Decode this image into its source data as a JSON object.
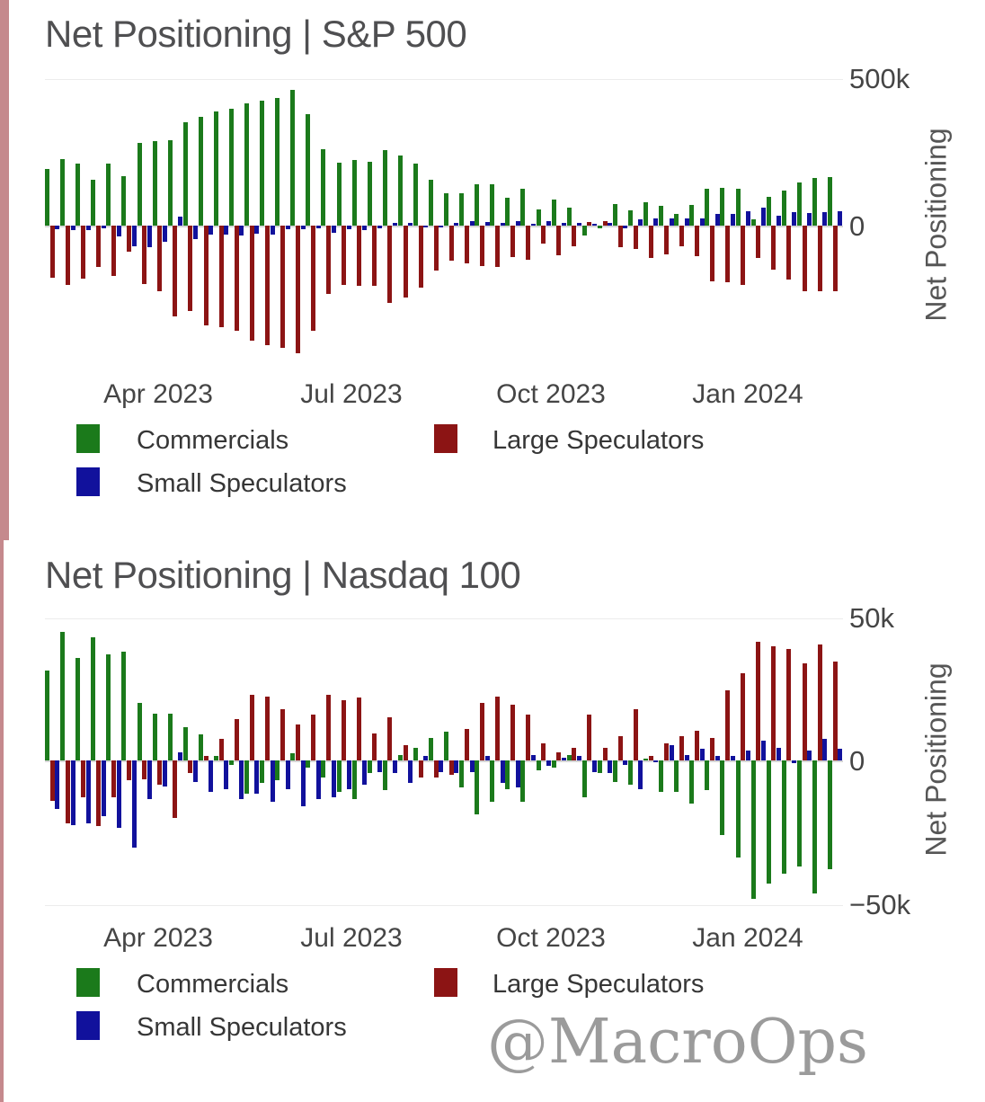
{
  "watermark": "@MacroOps",
  "accent": {
    "left_bar_color": "#c5898d"
  },
  "series": [
    {
      "name": "Commercials",
      "color": "#1b7a1b"
    },
    {
      "name": "Large Speculators",
      "color": "#8c1414"
    },
    {
      "name": "Small Speculators",
      "color": "#11119c"
    }
  ],
  "charts": [
    {
      "title": "Net Positioning | S&P 500",
      "y_axis_title": "Net Positioning",
      "y_tick_labels": [
        "500k",
        "0"
      ],
      "x_tick_labels": [
        "Apr 2023",
        "Jul 2023",
        "Oct 2023",
        "Jan 2024"
      ]
    },
    {
      "title": "Net Positioning | Nasdaq 100",
      "y_axis_title": "Net Positioning",
      "y_tick_labels": [
        "50k",
        "0",
        "−50k"
      ],
      "x_tick_labels": [
        "Apr 2023",
        "Jul 2023",
        "Oct 2023",
        "Jan 2024"
      ]
    }
  ],
  "chart_data": [
    {
      "type": "bar",
      "title": "Net Positioning | S&P 500",
      "ylabel": "Net Positioning",
      "unit": "thousands of contracts",
      "ylim": [
        -500,
        500
      ],
      "y_ticks_shown": [
        500,
        0
      ],
      "x_ticks": [
        "Apr 2023",
        "Jul 2023",
        "Oct 2023",
        "Jan 2024"
      ],
      "frequency": "weekly",
      "legend_position": "bottom-left",
      "grid": "horizontal-light",
      "series": [
        {
          "name": "Commercials",
          "values": [
            193,
            227,
            211,
            155,
            212,
            169,
            281,
            287,
            290,
            350,
            368,
            386,
            395,
            416,
            425,
            434,
            459,
            377,
            258,
            214,
            224,
            216,
            255,
            239,
            211,
            156,
            109,
            111,
            139,
            139,
            94,
            124,
            56,
            88,
            60,
            -32,
            -10,
            73,
            53,
            80,
            68,
            40,
            70,
            126,
            129,
            126,
            20,
            99,
            119,
            146,
            161,
            164
          ]
        },
        {
          "name": "Large Speculators",
          "values": [
            -178,
            -200,
            -181,
            -139,
            -172,
            -87,
            -197,
            -222,
            -308,
            -290,
            -338,
            -344,
            -356,
            -389,
            -404,
            -416,
            -434,
            -356,
            -231,
            -201,
            -205,
            -205,
            -261,
            -245,
            -211,
            -151,
            -118,
            -128,
            -138,
            -141,
            -108,
            -115,
            -60,
            -100,
            -70,
            13,
            15,
            -74,
            -80,
            -111,
            -98,
            -70,
            -105,
            -188,
            -193,
            -201,
            -111,
            -148,
            -183,
            -221,
            -223,
            -221
          ]
        },
        {
          "name": "Small Speculators",
          "values": [
            -12,
            -16,
            -16,
            -10,
            -36,
            -70,
            -72,
            -54,
            30,
            -45,
            -30,
            -30,
            -33,
            -27,
            -30,
            -12,
            -12,
            -8,
            -25,
            -12,
            -15,
            -8,
            10,
            10,
            -5,
            -5,
            8,
            15,
            12,
            10,
            15,
            5,
            15,
            10,
            8,
            5,
            8,
            -8,
            20,
            25,
            25,
            25,
            25,
            40,
            40,
            50,
            60,
            35,
            45,
            42,
            45,
            48
          ]
        }
      ]
    },
    {
      "type": "bar",
      "title": "Net Positioning | Nasdaq 100",
      "ylabel": "Net Positioning",
      "unit": "thousands of contracts",
      "ylim": [
        -50,
        50
      ],
      "y_ticks_shown": [
        50,
        0,
        -50
      ],
      "x_ticks": [
        "Apr 2023",
        "Jul 2023",
        "Oct 2023",
        "Jan 2024"
      ],
      "frequency": "weekly",
      "legend_position": "bottom-left",
      "grid": "horizontal-light",
      "series": [
        {
          "name": "Commercials",
          "values": [
            31.5,
            45,
            36,
            43,
            37,
            38,
            20,
            16.5,
            16.5,
            11.5,
            9,
            1.5,
            -1.5,
            -11.5,
            -8,
            -7,
            2.5,
            -2.5,
            -6,
            -11,
            -13.5,
            -4.5,
            -10.5,
            2,
            4.5,
            8,
            10,
            -9.5,
            -19,
            -14.5,
            -10,
            -14.5,
            -3.5,
            -2.5,
            2,
            -13,
            -4.5,
            -7.5,
            -8.5,
            0.5,
            -11,
            -11,
            -15,
            -10.5,
            -26,
            -34,
            -48.5,
            -43,
            -39.5,
            -37,
            -46.5,
            -38
          ]
        },
        {
          "name": "Large Speculators",
          "values": [
            -14,
            -22,
            -13,
            -23,
            -13,
            -7,
            -6.5,
            -8.5,
            -20,
            -4.5,
            1.5,
            7.5,
            14.5,
            23,
            22.5,
            18,
            12.5,
            16,
            23,
            21,
            22,
            9.5,
            15,
            5.5,
            -6,
            -6,
            -5,
            11,
            20,
            22.5,
            19.5,
            16,
            6,
            3,
            4.5,
            16,
            4.5,
            8.5,
            18,
            1.5,
            6,
            8.5,
            10.5,
            8,
            24.5,
            30.5,
            41.5,
            40,
            39,
            34,
            40.5,
            34.5
          ]
        },
        {
          "name": "Small Speculators",
          "values": [
            -17,
            -22.5,
            -22,
            -19.5,
            -23.5,
            -30.5,
            -13.5,
            -9,
            3,
            -7.5,
            -11,
            -10,
            -13.5,
            -11.5,
            -14.5,
            -10,
            -16,
            -13.5,
            -13,
            -10,
            -8.5,
            -4,
            -4.5,
            -8,
            1.5,
            -4,
            -4.5,
            -4,
            1.5,
            -8,
            -9.5,
            2,
            -2,
            1,
            1.5,
            -4,
            -4.5,
            -1.5,
            -10,
            -0.5,
            5.5,
            2,
            4,
            1.5,
            1.5,
            3.5,
            7,
            4.5,
            -1,
            3.5,
            7.5,
            4
          ]
        }
      ]
    }
  ]
}
